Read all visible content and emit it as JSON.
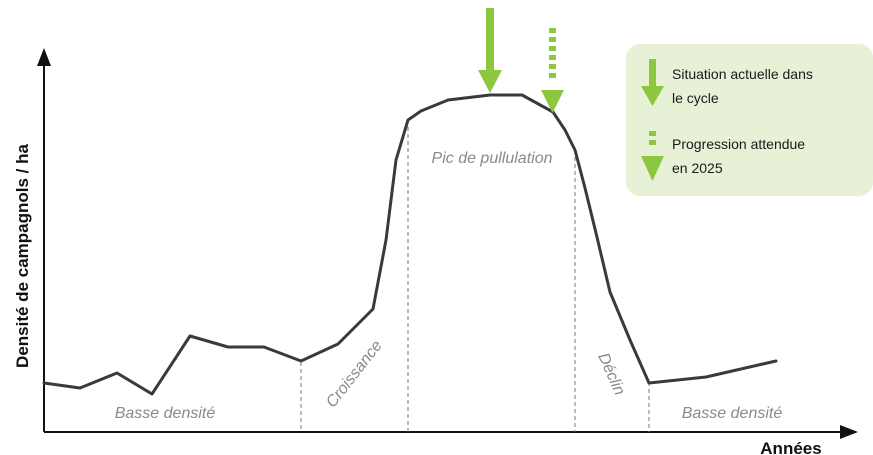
{
  "axes": {
    "y_title": "Densité de campagnols / ha",
    "x_title": "Années"
  },
  "phases": {
    "low_left": "Basse densité",
    "growth": "Croissance",
    "peak": "Pic de pullulation",
    "decline": "Déclin",
    "low_right": "Basse densité"
  },
  "legend": {
    "current_line1": "Situation actuelle dans",
    "current_line2": "le cycle",
    "expected_line1": "Progression attendue",
    "expected_line2": "en 2025"
  },
  "colors": {
    "accent_green": "#8dc63f",
    "legend_bg": "#e6f1d6",
    "curve": "#3a3a3a"
  }
}
